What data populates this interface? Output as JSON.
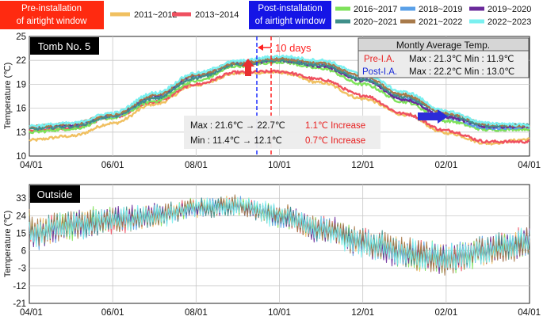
{
  "legend": {
    "pre_box": "Pre-installation of airtight window",
    "post_box": "Post-installation of airtight window",
    "entries": [
      {
        "label": "2011~2012",
        "color": "#f0c060",
        "group": "pre"
      },
      {
        "label": "2013~2014",
        "color": "#ef5060",
        "group": "pre"
      },
      {
        "label": "2016~2017",
        "color": "#7ee25a",
        "group": "post"
      },
      {
        "label": "2018~2019",
        "color": "#5aa0e8",
        "group": "post"
      },
      {
        "label": "2019~2020",
        "color": "#6a2a9a",
        "group": "post"
      },
      {
        "label": "2020~2021",
        "color": "#3f8f8a",
        "group": "post"
      },
      {
        "label": "2021~2022",
        "color": "#a87a4a",
        "group": "post"
      },
      {
        "label": "2022~2023",
        "color": "#7af0f0",
        "group": "post"
      }
    ]
  },
  "panel_labels": {
    "top": "Tomb No. 5",
    "bottom": "Outside"
  },
  "annotations": {
    "ten_days": "10 days",
    "stats_title": "Montly Average Temp.",
    "pre_name": "Pre-I.A.",
    "pre_values": "Max : 21.3℃  Min : 11.9℃",
    "post_name": "Post-I.A.",
    "post_values": "Max : 22.2℃  Min : 13.0℃",
    "max_change": "Max : 21.6℃ → 22.7℃",
    "max_increase": "1.1℃ Increase",
    "min_change": "Min : 11.4℃ → 12.1℃",
    "min_increase": "0.7℃ Increase"
  },
  "chart_data": [
    {
      "type": "line",
      "title": "Tomb No. 5",
      "xlabel": "",
      "ylabel": "Temperature (℃)",
      "x_ticks": [
        "04/01",
        "06/01",
        "08/01",
        "10/01",
        "12/01",
        "02/01",
        "04/01"
      ],
      "y_ticks": [
        "10",
        "13",
        "16",
        "19",
        "22",
        "25"
      ],
      "ylim": [
        10,
        25
      ],
      "x_unit": "month index from 04/01 (0 to 12)",
      "x": [
        0,
        1,
        2,
        3,
        4,
        5,
        6,
        7,
        8,
        9,
        10,
        11,
        12
      ],
      "series": [
        {
          "name": "2011~2012",
          "color": "#f0c060",
          "values": [
            12.0,
            12.5,
            14.1,
            16.5,
            18.9,
            20.4,
            20.5,
            19.2,
            17.2,
            15.2,
            12.9,
            11.6,
            12.1
          ]
        },
        {
          "name": "2013~2014",
          "color": "#ef5060",
          "values": [
            13.2,
            13.5,
            14.9,
            16.8,
            19.0,
            20.5,
            20.6,
            19.6,
            17.6,
            15.3,
            13.2,
            11.8,
            11.8
          ]
        },
        {
          "name": "2016~2017",
          "color": "#7ee25a",
          "values": [
            13.0,
            13.4,
            14.8,
            16.9,
            19.4,
            21.3,
            21.8,
            21.0,
            19.0,
            16.8,
            14.4,
            13.3,
            13.4
          ]
        },
        {
          "name": "2018~2019",
          "color": "#5aa0e8",
          "values": [
            13.5,
            13.8,
            15.0,
            17.3,
            20.0,
            21.8,
            22.3,
            21.6,
            19.7,
            17.2,
            14.8,
            13.5,
            13.6
          ]
        },
        {
          "name": "2019~2020",
          "color": "#6a2a9a",
          "values": [
            13.6,
            13.9,
            15.1,
            17.5,
            20.1,
            21.6,
            22.0,
            21.3,
            19.5,
            17.1,
            14.9,
            13.7,
            13.7
          ]
        },
        {
          "name": "2020~2021",
          "color": "#3f8f8a",
          "values": [
            13.4,
            13.7,
            15.0,
            17.2,
            19.8,
            21.5,
            22.0,
            21.4,
            19.6,
            17.4,
            15.2,
            13.8,
            13.9
          ]
        },
        {
          "name": "2021~2022",
          "color": "#a87a4a",
          "values": [
            13.7,
            14.0,
            15.2,
            17.6,
            20.2,
            21.7,
            22.2,
            21.7,
            20.0,
            17.7,
            15.4,
            14.0,
            13.8
          ]
        },
        {
          "name": "2022~2023",
          "color": "#7af0f0",
          "values": [
            13.8,
            14.1,
            15.4,
            17.9,
            20.4,
            21.9,
            22.5,
            22.0,
            20.3,
            18.0,
            15.6,
            14.1,
            13.9
          ]
        }
      ]
    },
    {
      "type": "line",
      "title": "Outside",
      "xlabel": "",
      "ylabel": "Temperature (℃)",
      "x_ticks": [
        "04/01",
        "06/01",
        "08/01",
        "10/01",
        "12/01",
        "02/01",
        "04/01"
      ],
      "y_ticks": [
        "-21",
        "-12",
        "-3",
        "6",
        "15",
        "24",
        "33"
      ],
      "ylim": [
        -21,
        40
      ],
      "x_unit": "month index from 04/01 (0 to 12)",
      "x": [
        0,
        1,
        2,
        3,
        4,
        5,
        6,
        7,
        8,
        9,
        10,
        11,
        12
      ],
      "mean": [
        15,
        19,
        22,
        24,
        28,
        29,
        24,
        17,
        10,
        5,
        2,
        6,
        11
      ],
      "amplitude": [
        12,
        12,
        10,
        9,
        7,
        8,
        9,
        10,
        11,
        12,
        12,
        12,
        12
      ],
      "series_names": [
        "2011~2012",
        "2013~2014",
        "2016~2017",
        "2018~2019",
        "2019~2020",
        "2020~2021",
        "2021~2022",
        "2022~2023"
      ]
    }
  ]
}
